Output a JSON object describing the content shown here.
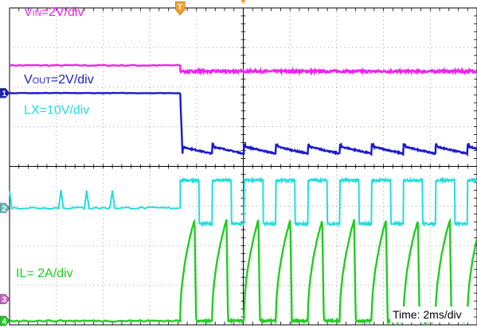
{
  "chart_data": {
    "type": "line",
    "title": "",
    "xlabel": "Time: 2ms/div",
    "ylabel": "",
    "grid": true,
    "x_divisions": 10,
    "y_divisions": 8,
    "trigger_marker": "T",
    "channels": [
      {
        "id": "vin",
        "color": "#ee22ee",
        "label": {
          "main": "V",
          "sub": "IN",
          "rest": "=2V/div"
        },
        "marker_text": "",
        "waveform": {
          "kind": "step",
          "before": 6.55,
          "after": 6.4,
          "noise": 0.03
        }
      },
      {
        "id": "vout",
        "color": "#1a1acc",
        "label": {
          "main": "V",
          "sub": "OUT",
          "rest": "=2V/div"
        },
        "marker_text": "1",
        "waveform": {
          "kind": "sawtooth_decay",
          "before": 5.85,
          "low": 4.32,
          "high": 4.55,
          "cycles": 9
        }
      },
      {
        "id": "lx",
        "color": "#22dddd",
        "label": {
          "main": "LX=10V/div",
          "sub": "",
          "rest": ""
        },
        "marker_text": "2",
        "waveform": {
          "kind": "pwm",
          "before": 2.95,
          "low": 2.55,
          "high": 3.65,
          "cycles": 9,
          "duty": 0.6
        }
      },
      {
        "id": "il",
        "color": "#22cc22",
        "label": {
          "main": "IL= 2A/div",
          "sub": "",
          "rest": ""
        },
        "marker_text": "4",
        "waveform": {
          "kind": "ramp",
          "before": 0.1,
          "low": 0.1,
          "high": 2.65,
          "cycles": 9
        }
      }
    ],
    "extra_marker": {
      "text": "3",
      "color": "#cc66cc"
    },
    "trigger_x_div": 3.65
  }
}
